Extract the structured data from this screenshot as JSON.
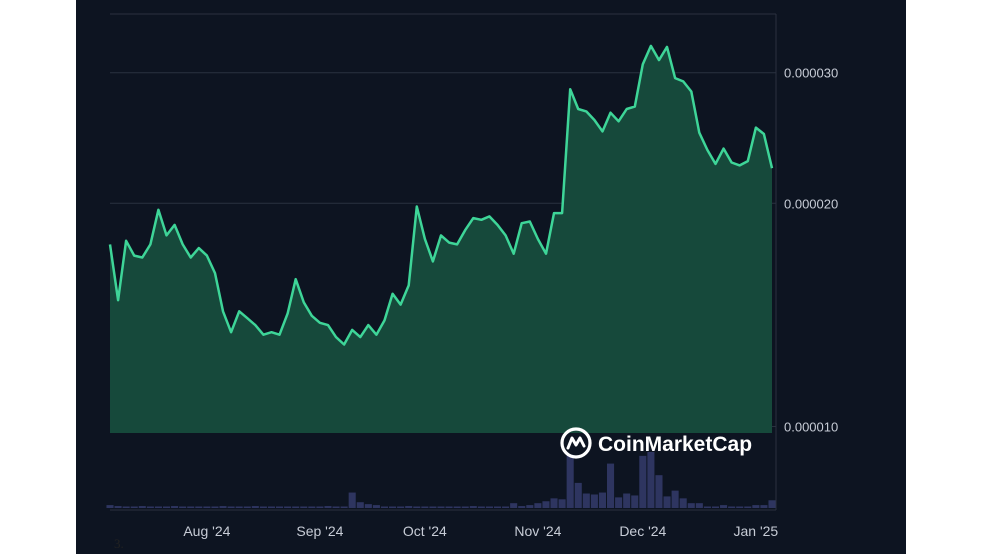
{
  "brand": {
    "name": "CoinMarketCap",
    "logo": "coinmarketcap-logo-icon"
  },
  "footnote": "3.",
  "colors": {
    "background": "#0d1421",
    "line": "#3ed598",
    "area": "#16493b",
    "volume": "#2e3560",
    "grid": "#2a3140",
    "text": "#c7ccd6"
  },
  "chart_data": {
    "type": "area",
    "yscale": "log",
    "ylim": [
      9.8e-06,
      3.6e-05
    ],
    "yticks": [
      {
        "value": 3e-05,
        "label": "0.000030"
      },
      {
        "value": 2e-05,
        "label": "0.000020"
      },
      {
        "value": 1e-05,
        "label": "0.000010"
      }
    ],
    "xticks": [
      {
        "index": 12,
        "label": "Aug '24"
      },
      {
        "index": 26,
        "label": "Sep '24"
      },
      {
        "index": 39,
        "label": "Oct '24"
      },
      {
        "index": 53,
        "label": "Nov '24"
      },
      {
        "index": 66,
        "label": "Dec '24"
      },
      {
        "index": 80,
        "label": "Jan '25"
      }
    ],
    "grid": true,
    "values": [
      1.76e-05,
      1.48e-05,
      1.78e-05,
      1.7e-05,
      1.69e-05,
      1.76e-05,
      1.96e-05,
      1.81e-05,
      1.87e-05,
      1.76e-05,
      1.69e-05,
      1.74e-05,
      1.7e-05,
      1.61e-05,
      1.43e-05,
      1.34e-05,
      1.43e-05,
      1.4e-05,
      1.37e-05,
      1.33e-05,
      1.34e-05,
      1.33e-05,
      1.42e-05,
      1.58e-05,
      1.47e-05,
      1.41e-05,
      1.38e-05,
      1.37e-05,
      1.32e-05,
      1.29e-05,
      1.35e-05,
      1.32e-05,
      1.37e-05,
      1.33e-05,
      1.39e-05,
      1.51e-05,
      1.46e-05,
      1.55e-05,
      1.98e-05,
      1.79e-05,
      1.67e-05,
      1.81e-05,
      1.77e-05,
      1.76e-05,
      1.84e-05,
      1.91e-05,
      1.9e-05,
      1.92e-05,
      1.87e-05,
      1.81e-05,
      1.71e-05,
      1.88e-05,
      1.89e-05,
      1.79e-05,
      1.71e-05,
      1.94e-05,
      1.94e-05,
      2.85e-05,
      2.68e-05,
      2.66e-05,
      2.59e-05,
      2.5e-05,
      2.65e-05,
      2.58e-05,
      2.68e-05,
      2.7e-05,
      3.08e-05,
      3.26e-05,
      3.12e-05,
      3.25e-05,
      2.95e-05,
      2.92e-05,
      2.83e-05,
      2.49e-05,
      2.36e-05,
      2.26e-05,
      2.37e-05,
      2.27e-05,
      2.25e-05,
      2.28e-05,
      2.53e-05,
      2.48e-05,
      2.23e-05
    ],
    "volume": [
      3,
      2,
      1,
      1,
      2,
      1,
      1,
      1,
      2,
      1,
      1,
      1,
      1,
      1,
      2,
      1,
      1,
      1,
      2,
      1,
      1,
      1,
      1,
      1,
      1,
      1,
      1,
      2,
      1,
      1,
      1,
      1,
      2,
      1,
      1,
      1,
      1,
      2,
      1,
      1,
      1,
      1,
      1,
      1,
      1,
      1,
      1,
      1,
      1,
      1,
      1,
      1,
      1,
      1,
      1,
      1,
      1,
      1,
      1,
      1,
      1,
      1,
      1,
      1,
      1,
      1,
      1,
      1,
      1,
      1,
      1,
      1,
      1,
      1,
      1,
      1,
      1,
      1,
      1,
      1,
      1,
      1,
      2
    ],
    "volume_overrides": [
      [
        30,
        16
      ],
      [
        31,
        6
      ],
      [
        32,
        4
      ],
      [
        33,
        3
      ],
      [
        42,
        1
      ],
      [
        45,
        2
      ],
      [
        50,
        5
      ],
      [
        51,
        2
      ],
      [
        52,
        3
      ],
      [
        53,
        5
      ],
      [
        54,
        7
      ],
      [
        55,
        10
      ],
      [
        56,
        9
      ],
      [
        57,
        55
      ],
      [
        58,
        26
      ],
      [
        59,
        15
      ],
      [
        60,
        14
      ],
      [
        61,
        16
      ],
      [
        62,
        46
      ],
      [
        63,
        11
      ],
      [
        64,
        15
      ],
      [
        65,
        13
      ],
      [
        66,
        54
      ],
      [
        67,
        58
      ],
      [
        68,
        34
      ],
      [
        69,
        12
      ],
      [
        70,
        18
      ],
      [
        71,
        10
      ],
      [
        72,
        5
      ],
      [
        73,
        5
      ],
      [
        76,
        3
      ],
      [
        80,
        3
      ],
      [
        81,
        3
      ],
      [
        82,
        8
      ]
    ]
  }
}
